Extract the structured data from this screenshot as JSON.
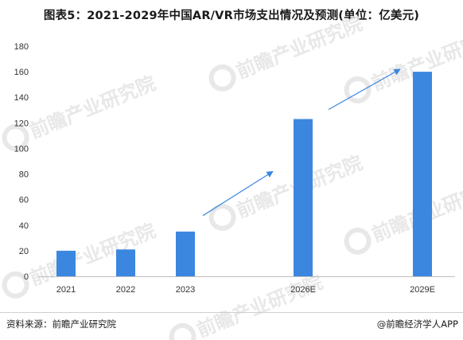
{
  "title": "图表5：2021-2029年中国AR/VR市场支出情况及预测(单位：亿美元)",
  "source": "资料来源：前瞻产业研究院",
  "credit": "@前瞻经济学人APP",
  "watermark": "前瞻产业研究院",
  "colors": {
    "bar": "#3b87e0",
    "arrow": "#3b87e0",
    "axis": "#bfbfbf",
    "watermark": "#e6e6e6"
  },
  "chart_data": {
    "type": "bar",
    "categories": [
      "2021",
      "2022",
      "2023",
      "2026E",
      "2029E"
    ],
    "values": [
      20,
      21,
      35,
      123,
      160
    ],
    "ylim": [
      0,
      180
    ],
    "yticks": [
      0,
      20,
      40,
      60,
      80,
      100,
      120,
      140,
      160,
      180
    ],
    "grid": false,
    "legend": "none"
  }
}
